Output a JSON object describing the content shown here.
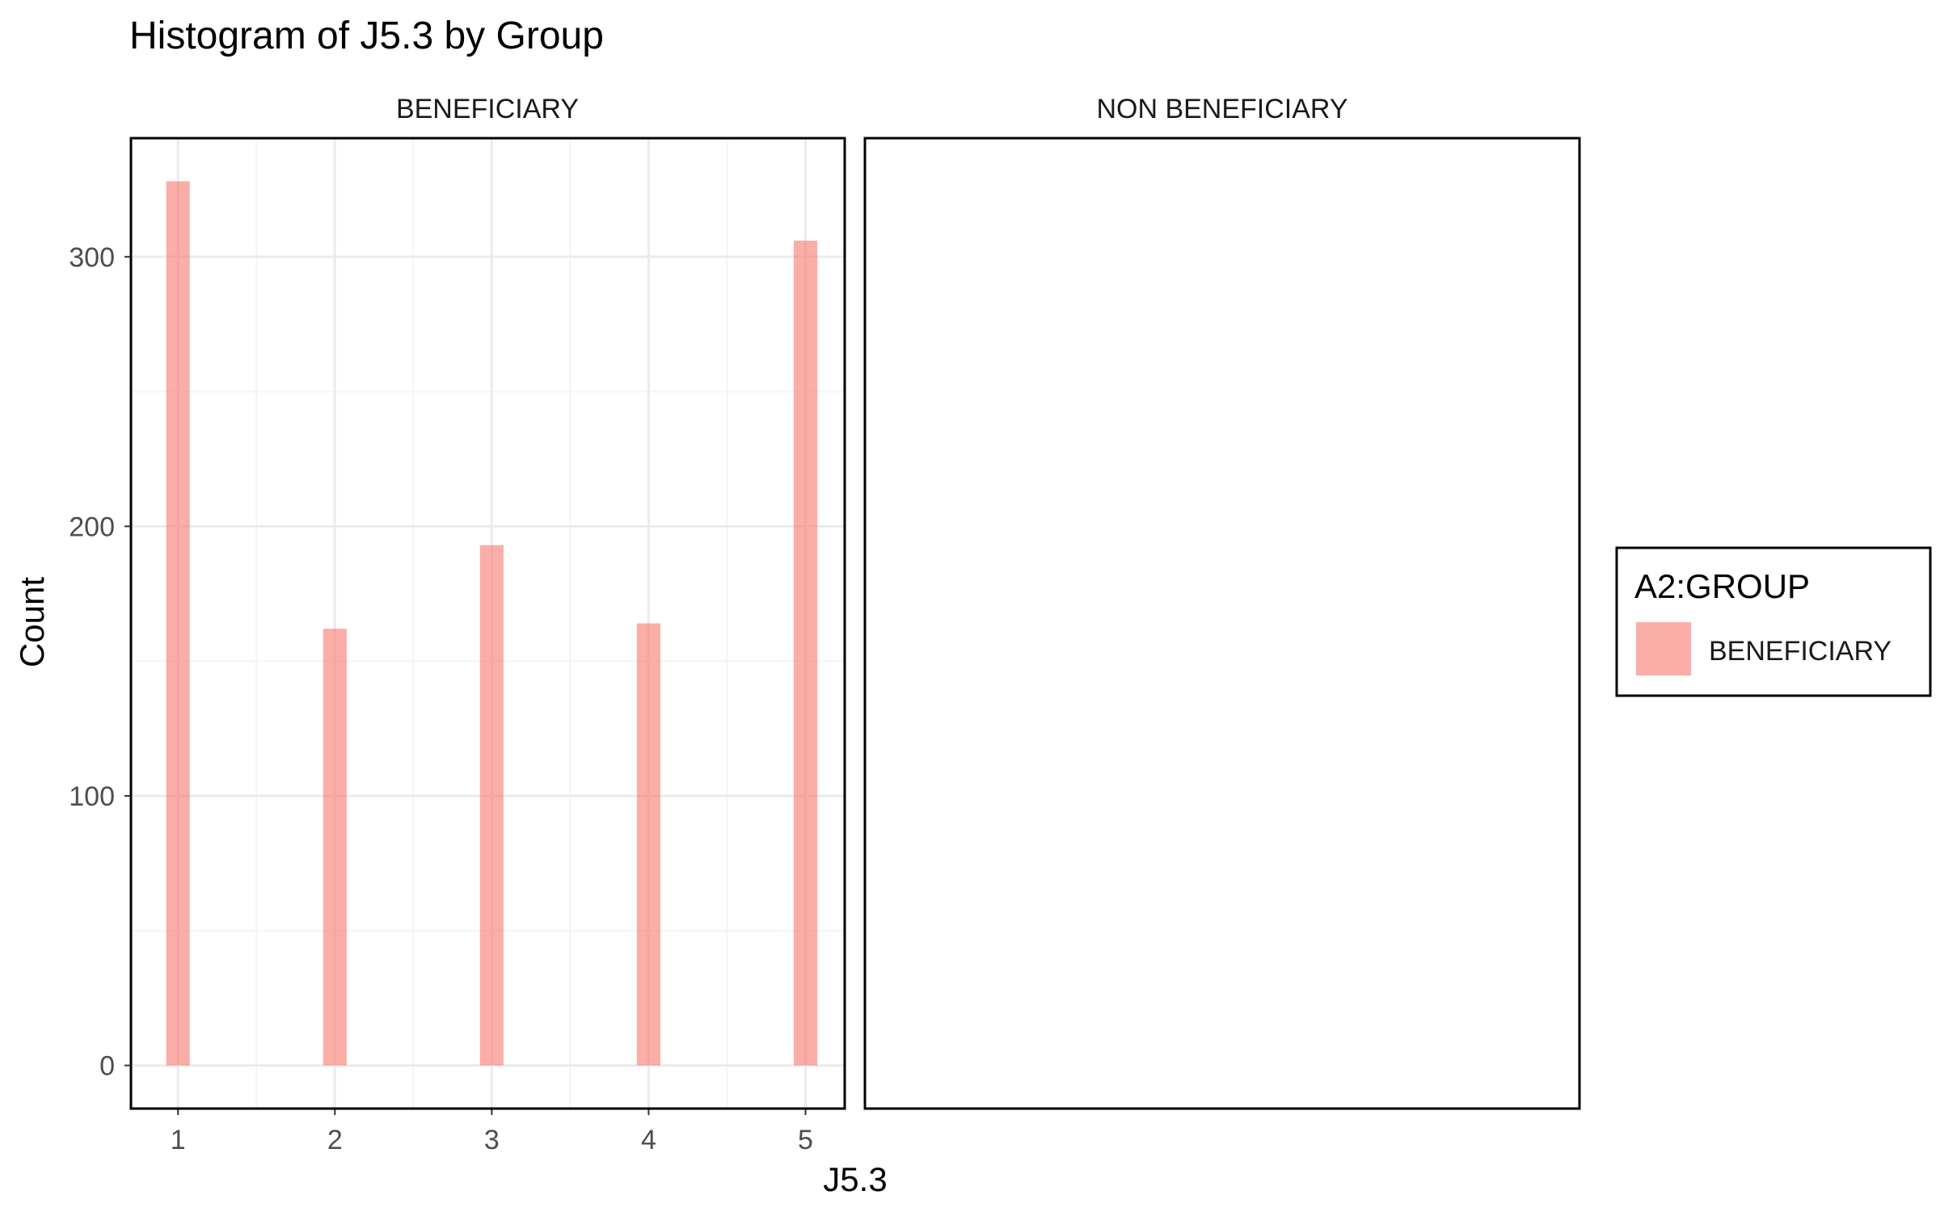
{
  "chart_data": {
    "type": "bar",
    "title": "Histogram of J5.3 by Group",
    "xlabel": "J5.3",
    "ylabel": "Count",
    "x_ticks": [
      "1",
      "2",
      "3",
      "4",
      "5"
    ],
    "y_ticks": [
      "0",
      "100",
      "200",
      "300"
    ],
    "xlim": [
      0.7,
      5.25
    ],
    "ylim": [
      -16,
      344
    ],
    "grid": true,
    "bar_width": 0.15,
    "facets": [
      {
        "label": "BENEFICIARY",
        "series": [
          {
            "name": "BENEFICIARY",
            "x": [
              1,
              2,
              3,
              4,
              5
            ],
            "values": [
              328,
              162,
              193,
              164,
              306
            ]
          }
        ]
      },
      {
        "label": "NON BENEFICIARY",
        "series": []
      }
    ],
    "legend": {
      "title": "A2:GROUP",
      "position": "right",
      "entries": [
        {
          "label": "BENEFICIARY",
          "color": "#F8766D"
        }
      ]
    },
    "colors": {
      "bar": "#F8766D",
      "bar_opacity": 0.6,
      "grid_major": "#EBEBEB",
      "grid_minor": "#F4F4F4",
      "panel_border": "#000000"
    }
  }
}
